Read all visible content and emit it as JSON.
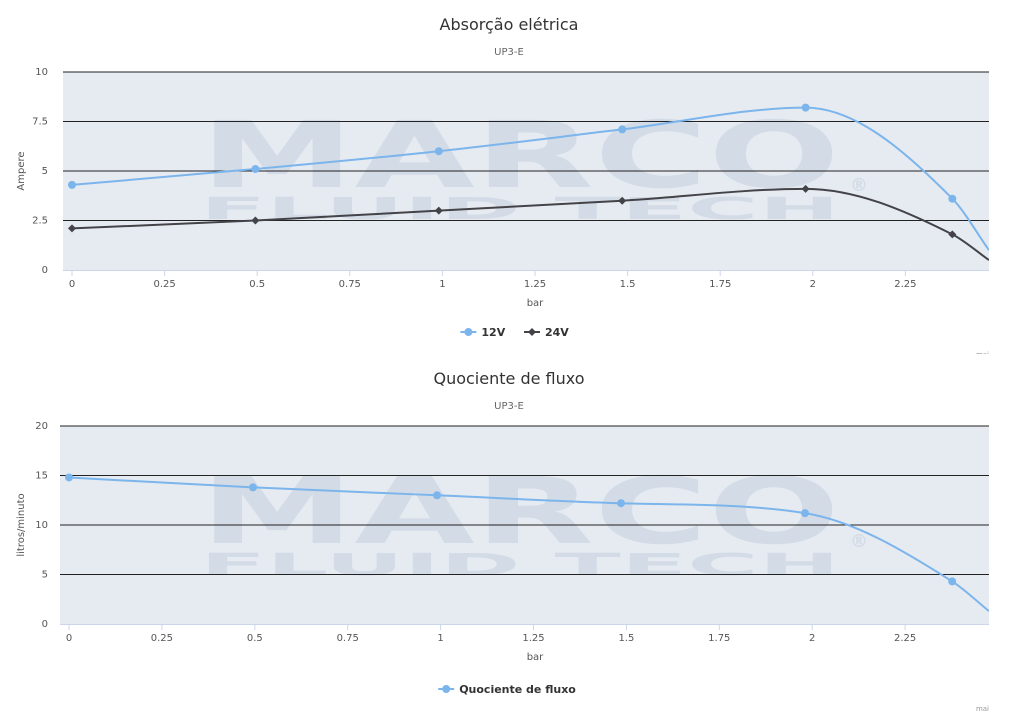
{
  "chart_data": [
    {
      "type": "line",
      "title": "Absorção elétrica",
      "subtitle": "UP3-E",
      "xlabel": "bar",
      "ylabel": "Ampere",
      "xlim": [
        0,
        2.5
      ],
      "ylim": [
        0,
        10
      ],
      "xticks": [
        "0",
        "0.25",
        "0.5",
        "0.75",
        "1",
        "1.25",
        "1.5",
        "1.75",
        "2",
        "2.25"
      ],
      "yticks": [
        "0",
        "2.5",
        "5",
        "7.5",
        "10"
      ],
      "grid": true,
      "legend_position": "bottom-center",
      "watermark": [
        "MARCO",
        "FLUID TECH",
        "®"
      ],
      "credit": "mai",
      "x": [
        0,
        0.5,
        1,
        1.5,
        2,
        2.4,
        2.5
      ],
      "series": [
        {
          "name": "12V",
          "color": "#7cb5ec",
          "marker": "circle",
          "values": [
            4.3,
            5.1,
            6.0,
            7.1,
            8.2,
            3.6,
            1.0
          ]
        },
        {
          "name": "24V",
          "color": "#434348",
          "marker": "diamond",
          "values": [
            2.1,
            2.5,
            3.0,
            3.5,
            4.1,
            1.8,
            0.5
          ]
        }
      ]
    },
    {
      "type": "line",
      "title": "Quociente de fluxo",
      "subtitle": "UP3-E",
      "xlabel": "bar",
      "ylabel": "litros/minuto",
      "xlim": [
        0,
        2.5
      ],
      "ylim": [
        0,
        20
      ],
      "xticks": [
        "0",
        "0.25",
        "0.5",
        "0.75",
        "1",
        "1.25",
        "1.5",
        "1.75",
        "2",
        "2.25"
      ],
      "yticks": [
        "0",
        "5",
        "10",
        "15",
        "20"
      ],
      "grid": true,
      "legend_position": "bottom-center",
      "watermark": [
        "MARCO",
        "FLUID TECH",
        "®"
      ],
      "credit": "mai",
      "x": [
        0,
        0.5,
        1,
        1.5,
        2,
        2.4,
        2.5
      ],
      "series": [
        {
          "name": "Quociente de fluxo",
          "color": "#7cb5ec",
          "marker": "circle",
          "values": [
            14.8,
            13.8,
            13.0,
            12.2,
            11.2,
            4.3,
            1.3
          ]
        }
      ]
    }
  ]
}
